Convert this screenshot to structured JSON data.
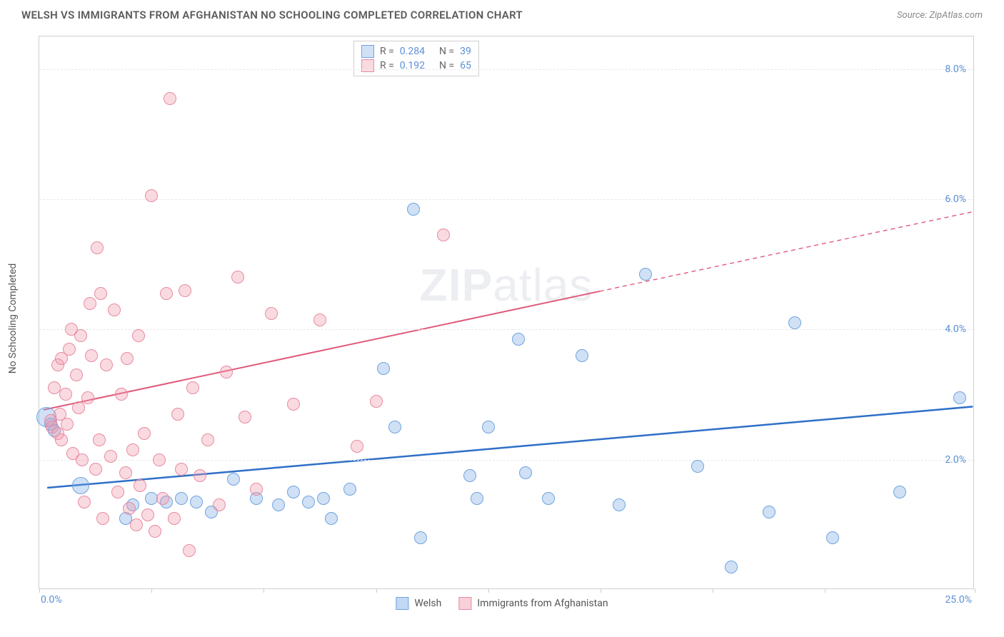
{
  "title": "WELSH VS IMMIGRANTS FROM AFGHANISTAN NO SCHOOLING COMPLETED CORRELATION CHART",
  "source_label": "Source:",
  "source_name": "ZipAtlas.com",
  "watermark": {
    "bold": "ZIP",
    "rest": "atlas"
  },
  "ylabel": "No Schooling Completed",
  "chart": {
    "type": "scatter",
    "background_color": "#ffffff",
    "grid_color": "#e8e8e8",
    "border_color": "#d0d0d0",
    "xlim": [
      0,
      25
    ],
    "ylim": [
      0,
      8.5
    ],
    "xtick_positions": [
      0,
      3,
      6,
      9,
      12,
      15,
      18,
      21,
      25
    ],
    "xtick_labels_shown": {
      "0": "0.0%",
      "25": "25.0%"
    },
    "ytick_positions": [
      2,
      4,
      6,
      8
    ],
    "ytick_labels": [
      "2.0%",
      "4.0%",
      "6.0%",
      "8.0%"
    ],
    "axis_label_color": "#5b8fd6",
    "axis_label_fontsize": 14,
    "point_radius": 9,
    "point_stroke_width": 1.5,
    "series": [
      {
        "name": "Welsh",
        "fill": "rgba(120,170,230,0.35)",
        "stroke": "#6fa3df",
        "r_value": "0.284",
        "n_value": "39",
        "trend": {
          "x1": 0.2,
          "y1": 1.55,
          "x2": 25,
          "y2": 2.8,
          "color": "#2f6fc7",
          "width": 2.5,
          "dashed_from_x": null
        },
        "points": [
          {
            "x": 0.2,
            "y": 2.65,
            "r": 14
          },
          {
            "x": 0.3,
            "y": 2.55
          },
          {
            "x": 0.4,
            "y": 2.45
          },
          {
            "x": 1.1,
            "y": 1.6,
            "r": 12
          },
          {
            "x": 2.3,
            "y": 1.1
          },
          {
            "x": 2.5,
            "y": 1.3
          },
          {
            "x": 3.0,
            "y": 1.4
          },
          {
            "x": 3.4,
            "y": 1.35
          },
          {
            "x": 3.8,
            "y": 1.4
          },
          {
            "x": 4.2,
            "y": 1.35
          },
          {
            "x": 4.6,
            "y": 1.2
          },
          {
            "x": 5.2,
            "y": 1.7
          },
          {
            "x": 5.8,
            "y": 1.4
          },
          {
            "x": 6.4,
            "y": 1.3
          },
          {
            "x": 6.8,
            "y": 1.5
          },
          {
            "x": 7.2,
            "y": 1.35
          },
          {
            "x": 7.6,
            "y": 1.4
          },
          {
            "x": 7.8,
            "y": 1.1
          },
          {
            "x": 8.3,
            "y": 1.55
          },
          {
            "x": 9.2,
            "y": 3.4
          },
          {
            "x": 9.5,
            "y": 2.5
          },
          {
            "x": 10.0,
            "y": 5.85
          },
          {
            "x": 10.2,
            "y": 0.8
          },
          {
            "x": 11.5,
            "y": 1.75
          },
          {
            "x": 11.7,
            "y": 1.4
          },
          {
            "x": 12.0,
            "y": 2.5
          },
          {
            "x": 12.8,
            "y": 3.85
          },
          {
            "x": 13.0,
            "y": 1.8
          },
          {
            "x": 13.6,
            "y": 1.4
          },
          {
            "x": 14.5,
            "y": 3.6
          },
          {
            "x": 15.5,
            "y": 1.3
          },
          {
            "x": 16.2,
            "y": 4.85
          },
          {
            "x": 17.6,
            "y": 1.9
          },
          {
            "x": 18.5,
            "y": 0.35
          },
          {
            "x": 19.5,
            "y": 1.2
          },
          {
            "x": 20.2,
            "y": 4.1
          },
          {
            "x": 21.2,
            "y": 0.8
          },
          {
            "x": 23.0,
            "y": 1.5
          },
          {
            "x": 24.6,
            "y": 2.95
          }
        ]
      },
      {
        "name": "Immigrants from Afghanistan",
        "fill": "rgba(240,150,170,0.35)",
        "stroke": "#e88aa0",
        "r_value": "0.192",
        "n_value": "65",
        "trend": {
          "x1": 0.1,
          "y1": 2.75,
          "x2": 25,
          "y2": 5.8,
          "color": "#e05a7a",
          "width": 2,
          "dashed_from_x": 15
        },
        "points": [
          {
            "x": 0.3,
            "y": 2.6
          },
          {
            "x": 0.35,
            "y": 2.5
          },
          {
            "x": 0.4,
            "y": 3.1
          },
          {
            "x": 0.5,
            "y": 2.4
          },
          {
            "x": 0.5,
            "y": 3.45
          },
          {
            "x": 0.55,
            "y": 2.7
          },
          {
            "x": 0.6,
            "y": 2.3
          },
          {
            "x": 0.6,
            "y": 3.55
          },
          {
            "x": 0.7,
            "y": 3.0
          },
          {
            "x": 0.75,
            "y": 2.55
          },
          {
            "x": 0.8,
            "y": 3.7
          },
          {
            "x": 0.85,
            "y": 4.0
          },
          {
            "x": 0.9,
            "y": 2.1
          },
          {
            "x": 1.0,
            "y": 3.3
          },
          {
            "x": 1.05,
            "y": 2.8
          },
          {
            "x": 1.1,
            "y": 3.9
          },
          {
            "x": 1.15,
            "y": 2.0
          },
          {
            "x": 1.2,
            "y": 1.35
          },
          {
            "x": 1.3,
            "y": 2.95
          },
          {
            "x": 1.35,
            "y": 4.4
          },
          {
            "x": 1.4,
            "y": 3.6
          },
          {
            "x": 1.5,
            "y": 1.85
          },
          {
            "x": 1.55,
            "y": 5.25
          },
          {
            "x": 1.6,
            "y": 2.3
          },
          {
            "x": 1.65,
            "y": 4.55
          },
          {
            "x": 1.7,
            "y": 1.1
          },
          {
            "x": 1.8,
            "y": 3.45
          },
          {
            "x": 1.9,
            "y": 2.05
          },
          {
            "x": 2.0,
            "y": 4.3
          },
          {
            "x": 2.1,
            "y": 1.5
          },
          {
            "x": 2.2,
            "y": 3.0
          },
          {
            "x": 2.3,
            "y": 1.8
          },
          {
            "x": 2.35,
            "y": 3.55
          },
          {
            "x": 2.4,
            "y": 1.25
          },
          {
            "x": 2.5,
            "y": 2.15
          },
          {
            "x": 2.6,
            "y": 1.0
          },
          {
            "x": 2.65,
            "y": 3.9
          },
          {
            "x": 2.7,
            "y": 1.6
          },
          {
            "x": 2.8,
            "y": 2.4
          },
          {
            "x": 2.9,
            "y": 1.15
          },
          {
            "x": 3.0,
            "y": 6.05
          },
          {
            "x": 3.1,
            "y": 0.9
          },
          {
            "x": 3.2,
            "y": 2.0
          },
          {
            "x": 3.3,
            "y": 1.4
          },
          {
            "x": 3.4,
            "y": 4.55
          },
          {
            "x": 3.5,
            "y": 7.55
          },
          {
            "x": 3.6,
            "y": 1.1
          },
          {
            "x": 3.7,
            "y": 2.7
          },
          {
            "x": 3.8,
            "y": 1.85
          },
          {
            "x": 3.9,
            "y": 4.6
          },
          {
            "x": 4.0,
            "y": 0.6
          },
          {
            "x": 4.1,
            "y": 3.1
          },
          {
            "x": 4.3,
            "y": 1.75
          },
          {
            "x": 4.5,
            "y": 2.3
          },
          {
            "x": 4.8,
            "y": 1.3
          },
          {
            "x": 5.0,
            "y": 3.35
          },
          {
            "x": 5.3,
            "y": 4.8
          },
          {
            "x": 5.5,
            "y": 2.65
          },
          {
            "x": 5.8,
            "y": 1.55
          },
          {
            "x": 6.2,
            "y": 4.25
          },
          {
            "x": 6.8,
            "y": 2.85
          },
          {
            "x": 7.5,
            "y": 4.15
          },
          {
            "x": 8.5,
            "y": 2.2
          },
          {
            "x": 9.0,
            "y": 2.9
          },
          {
            "x": 10.8,
            "y": 5.45
          }
        ]
      }
    ]
  },
  "legend_bottom": [
    {
      "label": "Welsh",
      "fill": "rgba(120,170,230,0.45)",
      "stroke": "#6fa3df"
    },
    {
      "label": "Immigrants from Afghanistan",
      "fill": "rgba(240,150,170,0.45)",
      "stroke": "#e88aa0"
    }
  ]
}
